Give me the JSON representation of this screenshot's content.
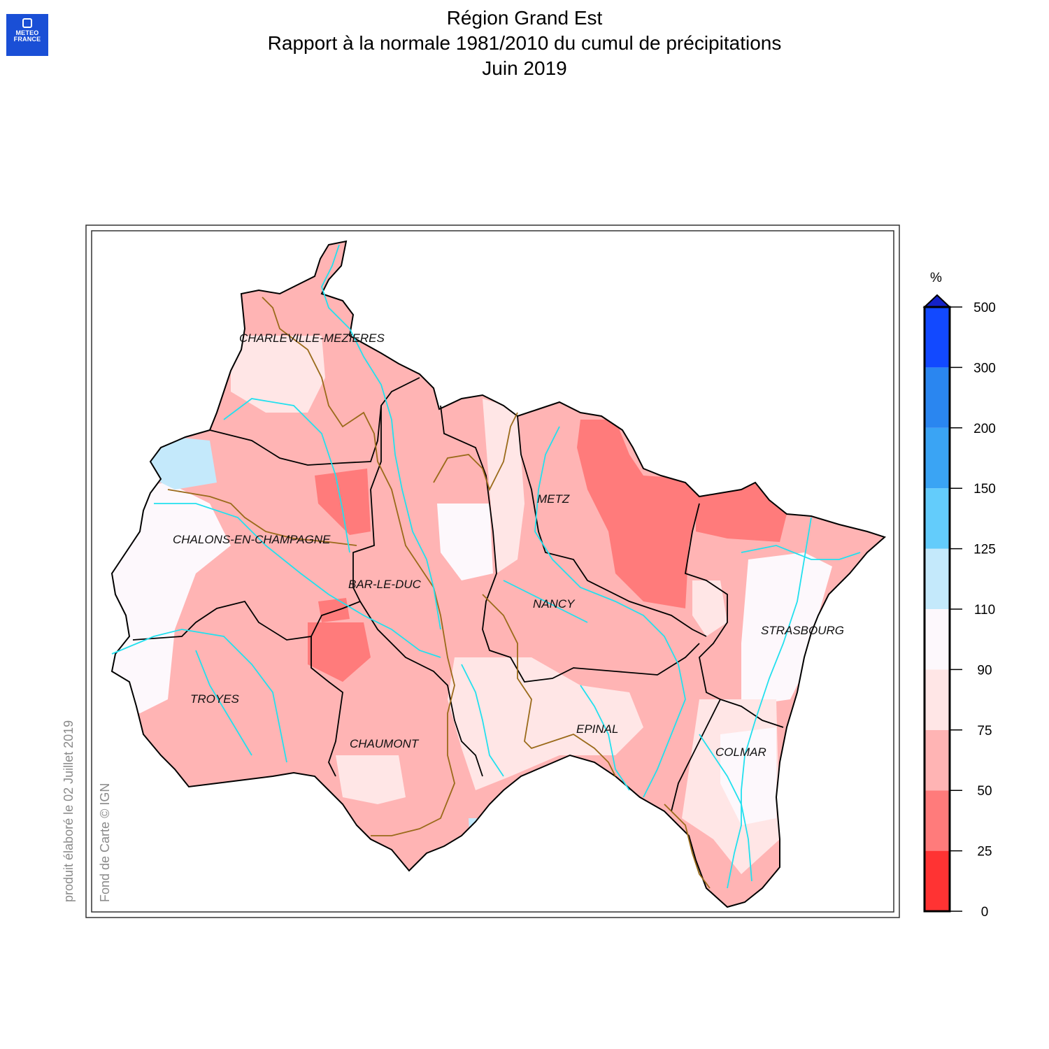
{
  "header": {
    "logo_line1": "METEO",
    "logo_line2": "FRANCE",
    "title_line1": "Région Grand Est",
    "title_line2": "Rapport à la normale 1981/2010 du cumul de précipitations",
    "title_line3": "Juin 2019"
  },
  "credits": {
    "produced": "produit élaboré le 02 Juillet 2019",
    "basemap": "Fond de Carte © IGN"
  },
  "cities": {
    "charleville": "CHARLEVILLE-MEZIERES",
    "chalons": "CHALONS-EN-CHAMPAGNE",
    "metz": "METZ",
    "barleduc": "BAR-LE-DUC",
    "nancy": "NANCY",
    "strasbourg": "STRASBOURG",
    "troyes": "TROYES",
    "chaumont": "CHAUMONT",
    "epinal": "EPINAL",
    "colmar": "COLMAR"
  },
  "legend": {
    "unit": "%",
    "ticks": [
      "0",
      "25",
      "50",
      "75",
      "90",
      "110",
      "125",
      "150",
      "200",
      "300",
      "500"
    ],
    "colors": [
      "#ff3333",
      "#ff7b7b",
      "#ffb4b4",
      "#ffe6e6",
      "#fdf8fc",
      "#c4e9fb",
      "#63ccfb",
      "#3aa4f4",
      "#2a86f0",
      "#1249ff"
    ],
    "overflow_color": "#1422c8"
  }
}
